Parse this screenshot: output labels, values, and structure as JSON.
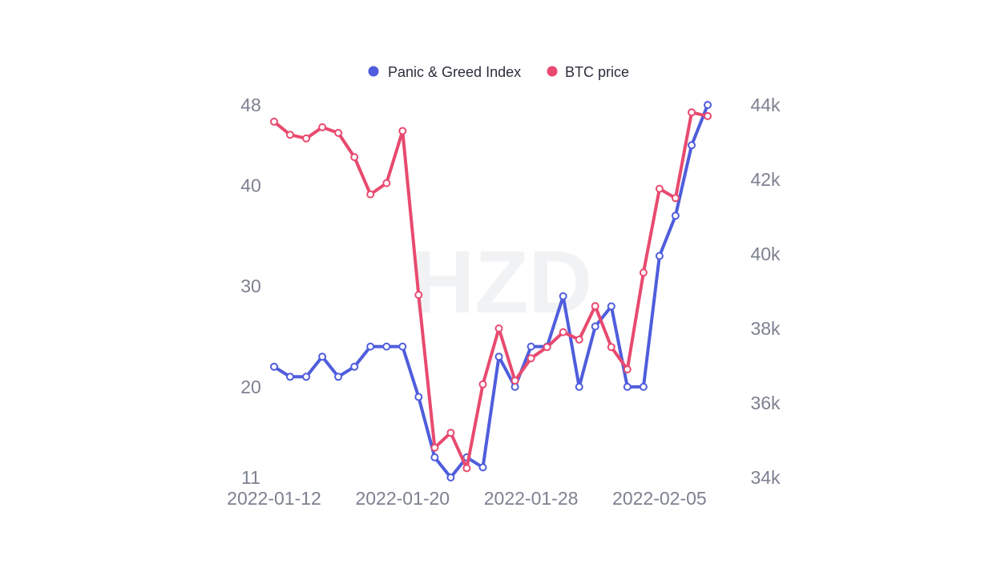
{
  "chart_data": {
    "type": "line",
    "title": "",
    "x_ticks": [
      "2022-01-12",
      "2022-01-20",
      "2022-01-28",
      "2022-02-05"
    ],
    "x": [
      "2022-01-12",
      "2022-01-13",
      "2022-01-14",
      "2022-01-15",
      "2022-01-16",
      "2022-01-17",
      "2022-01-18",
      "2022-01-19",
      "2022-01-20",
      "2022-01-21",
      "2022-01-22",
      "2022-01-23",
      "2022-01-24",
      "2022-01-25",
      "2022-01-26",
      "2022-01-27",
      "2022-01-28",
      "2022-01-29",
      "2022-01-30",
      "2022-01-31",
      "2022-02-01",
      "2022-02-02",
      "2022-02-03",
      "2022-02-04",
      "2022-02-05",
      "2022-02-06",
      "2022-02-07",
      "2022-02-08"
    ],
    "y_left": {
      "ticks": [
        "48",
        "40",
        "30",
        "20",
        "11"
      ],
      "lim": [
        11,
        48
      ]
    },
    "y_right": {
      "ticks": [
        "44k",
        "42k",
        "40k",
        "38k",
        "36k",
        "34k"
      ],
      "lim": [
        34000,
        44000
      ]
    },
    "legend": {
      "position": "top-center"
    },
    "series": [
      {
        "name": "Panic & Greed Index",
        "axis": "left",
        "color": "#4f5ddc",
        "values": [
          22,
          21,
          21,
          23,
          21,
          22,
          24,
          24,
          24,
          19,
          13,
          11,
          13,
          12,
          23,
          20,
          24,
          24,
          29,
          20,
          26,
          28,
          20,
          20,
          33,
          37,
          44,
          48
        ]
      },
      {
        "name": "BTC price",
        "axis": "right",
        "color": "#e84a6f",
        "values": [
          43550,
          43200,
          43100,
          43400,
          43250,
          42600,
          41600,
          41900,
          43300,
          38900,
          34800,
          35200,
          34250,
          36500,
          38000,
          36600,
          37200,
          37500,
          37900,
          37700,
          38600,
          37500,
          36900,
          39500,
          41750,
          41500,
          43800,
          43700
        ]
      }
    ],
    "watermark": "HZD"
  }
}
